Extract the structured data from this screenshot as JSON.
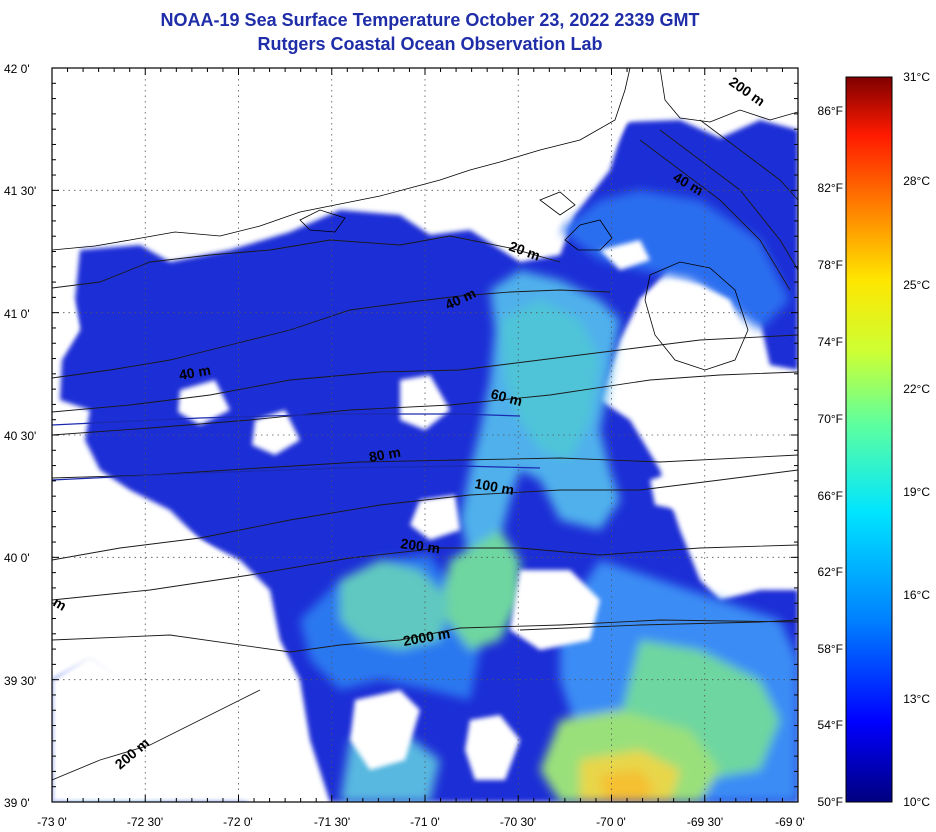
{
  "header": {
    "title": "NOAA-19 Sea Surface Temperature October 23, 2022 2339 GMT",
    "subtitle": "Rutgers Coastal Ocean Observation Lab"
  },
  "map": {
    "lat_labels": [
      "42 0'",
      "41 30'",
      "41 0'",
      "40 30'",
      "40 0'",
      "39 30'",
      "39 0'"
    ],
    "lon_labels": [
      "-73 0'",
      "-72 30'",
      "-72 0'",
      "-71 30'",
      "-71 0'",
      "-70 30'",
      "-70 0'",
      "-69 30'",
      "-69 0'"
    ],
    "depth_labels": [
      {
        "text": "200 m"
      },
      {
        "text": "40 m"
      },
      {
        "text": "20 m"
      },
      {
        "text": "40 m"
      },
      {
        "text": "40 m"
      },
      {
        "text": "60 m"
      },
      {
        "text": "80 m"
      },
      {
        "text": "100 m"
      },
      {
        "text": "200 m"
      },
      {
        "text": "2000 m"
      },
      {
        "text": "200 m"
      },
      {
        "text": "m"
      }
    ]
  },
  "colorbar": {
    "fahrenheit_labels": [
      "86°F",
      "82°F",
      "78°F",
      "74°F",
      "70°F",
      "66°F",
      "62°F",
      "58°F",
      "54°F",
      "50°F"
    ],
    "celsius_labels": [
      "31°C",
      "28°C",
      "25°C",
      "22°C",
      "19°C",
      "16°C",
      "13°C",
      "10°C"
    ],
    "colors": [
      "#00007f",
      "#0000ff",
      "#0080ff",
      "#00e5ff",
      "#5dff9f",
      "#ccff33",
      "#ffe600",
      "#ff8000",
      "#ff1a00",
      "#7f0000"
    ]
  }
}
